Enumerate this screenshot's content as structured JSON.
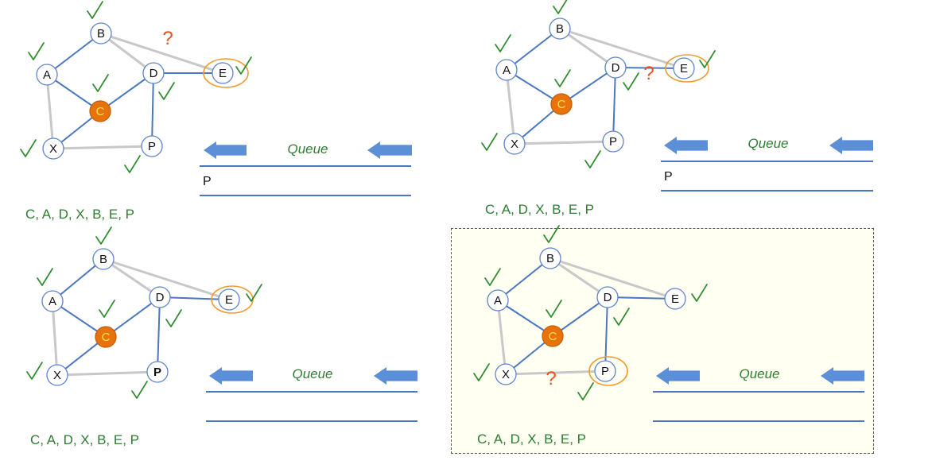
{
  "colors": {
    "edge_traversed": "#4a77c0",
    "edge_other": "#c8c8c8",
    "node_fill": "#ffffff",
    "node_stroke": "#5f85c9",
    "start_fill": "#e8730e",
    "start_text": "#ffe24a",
    "check": "#2e8b2e",
    "question": "#e8511b",
    "highlight": "#f29a2e",
    "queue_text": "#2e7d32",
    "queue_line": "#4a77c0",
    "arrow": "#5b8fd8",
    "sequence_text": "#2e7d32",
    "selection_border": "#555555"
  },
  "panels": [
    {
      "id": "top-left",
      "queue_title": "Queue",
      "queue_items": [
        "P"
      ],
      "sequence": "C, A, D, X, B, E, P",
      "question_mark": "?",
      "nodes": [
        {
          "id": "B",
          "label": "B",
          "start": false,
          "bold": false
        },
        {
          "id": "A",
          "label": "A",
          "start": false,
          "bold": false
        },
        {
          "id": "D",
          "label": "D",
          "start": false,
          "bold": false
        },
        {
          "id": "E",
          "label": "E",
          "start": false,
          "bold": false
        },
        {
          "id": "C",
          "label": "C",
          "start": true,
          "bold": false
        },
        {
          "id": "X",
          "label": "X",
          "start": false,
          "bold": false
        },
        {
          "id": "P",
          "label": "P",
          "start": false,
          "bold": false
        }
      ]
    },
    {
      "id": "top-right",
      "queue_title": "Queue",
      "queue_items": [
        "P"
      ],
      "sequence": "C, A, D, X, B, E, P",
      "question_mark": "?",
      "nodes": [
        {
          "id": "B",
          "label": "B",
          "start": false,
          "bold": false
        },
        {
          "id": "A",
          "label": "A",
          "start": false,
          "bold": false
        },
        {
          "id": "D",
          "label": "D",
          "start": false,
          "bold": false
        },
        {
          "id": "E",
          "label": "E",
          "start": false,
          "bold": false
        },
        {
          "id": "C",
          "label": "C",
          "start": true,
          "bold": false
        },
        {
          "id": "X",
          "label": "X",
          "start": false,
          "bold": false
        },
        {
          "id": "P",
          "label": "P",
          "start": false,
          "bold": false
        }
      ]
    },
    {
      "id": "bottom-left",
      "queue_title": "Queue",
      "queue_items": [],
      "sequence": "C, A, D, X, B, E, P",
      "question_mark": "",
      "nodes": [
        {
          "id": "B",
          "label": "B",
          "start": false,
          "bold": false
        },
        {
          "id": "A",
          "label": "A",
          "start": false,
          "bold": false
        },
        {
          "id": "D",
          "label": "D",
          "start": false,
          "bold": false
        },
        {
          "id": "E",
          "label": "E",
          "start": false,
          "bold": false
        },
        {
          "id": "C",
          "label": "C",
          "start": true,
          "bold": false
        },
        {
          "id": "X",
          "label": "X",
          "start": false,
          "bold": false
        },
        {
          "id": "P",
          "label": "P",
          "start": false,
          "bold": true
        }
      ]
    },
    {
      "id": "bottom-right",
      "queue_title": "Queue",
      "queue_items": [],
      "sequence": "C, A, D, X, B, E, P",
      "question_mark": "?",
      "nodes": [
        {
          "id": "B",
          "label": "B",
          "start": false,
          "bold": false
        },
        {
          "id": "A",
          "label": "A",
          "start": false,
          "bold": false
        },
        {
          "id": "D",
          "label": "D",
          "start": false,
          "bold": false
        },
        {
          "id": "E",
          "label": "E",
          "start": false,
          "bold": false
        },
        {
          "id": "C",
          "label": "C",
          "start": true,
          "bold": false
        },
        {
          "id": "X",
          "label": "X",
          "start": false,
          "bold": false
        },
        {
          "id": "P",
          "label": "P",
          "start": false,
          "bold": false
        }
      ]
    }
  ]
}
